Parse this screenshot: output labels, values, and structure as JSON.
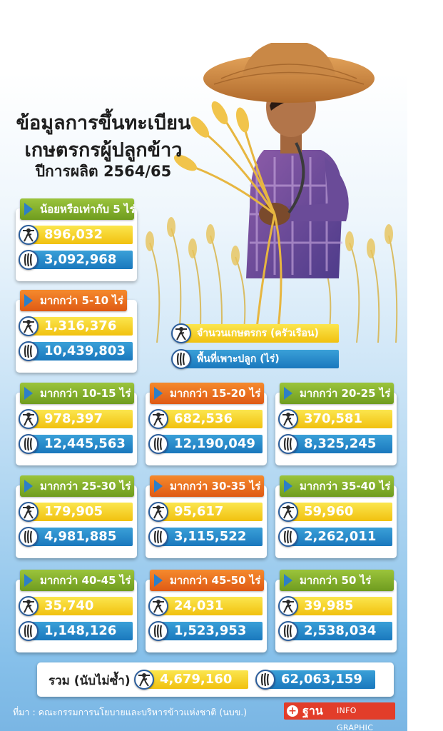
{
  "title": {
    "line1": "ข้อมูลการขึ้นทะเบียน",
    "line2": "เกษตรกรผู้ปลูกข้าว",
    "line3": "ปีการผลิต 2564/65"
  },
  "legend": {
    "households": "จำนวนเกษตรกร (ครัวเรือน)",
    "area": "พื้นที่เพาะปลูก (ไร่)"
  },
  "groups": [
    {
      "label": "น้อยหรือเท่ากับ 5 ไร่",
      "households": "896,032",
      "area": "3,092,968",
      "color": "#8bb832"
    },
    {
      "label": "มากกว่า 5-10 ไร่",
      "households": "1,316,376",
      "area": "10,439,803",
      "color": "#ea7320"
    },
    {
      "label": "มากกว่า 10-15 ไร่",
      "households": "978,397",
      "area": "12,445,563",
      "color": "#8bb832"
    },
    {
      "label": "มากกว่า 15-20 ไร่",
      "households": "682,536",
      "area": "12,190,049",
      "color": "#ea7320"
    },
    {
      "label": "มากกว่า 20-25 ไร่",
      "households": "370,581",
      "area": "8,325,245",
      "color": "#8bb832"
    },
    {
      "label": "มากกว่า 25-30 ไร่",
      "households": "179,905",
      "area": "4,981,885",
      "color": "#8bb832"
    },
    {
      "label": "มากกว่า 30-35 ไร่",
      "households": "95,617",
      "area": "3,115,522",
      "color": "#ea7320"
    },
    {
      "label": "มากกว่า 35-40 ไร่",
      "households": "59,960",
      "area": "2,262,011",
      "color": "#8bb832"
    },
    {
      "label": "มากกว่า 40-45 ไร่",
      "households": "35,740",
      "area": "1,148,126",
      "color": "#8bb832"
    },
    {
      "label": "มากกว่า 45-50 ไร่",
      "households": "24,031",
      "area": "1,523,953",
      "color": "#ea7320"
    },
    {
      "label": "มากกว่า 50 ไร่",
      "households": "39,985",
      "area": "2,538,034",
      "color": "#8bb832"
    }
  ],
  "total": {
    "label": "รวม (นับไม่ซ้ำ)",
    "households": "4,679,160",
    "area": "62,063,159"
  },
  "source": "ที่มา : คณะกรรมการนโยบายและบริหารข้าวแห่งชาติ (นบข.)",
  "logo": {
    "name": "ฐาน",
    "tagline": "INFO GRAPHIC"
  },
  "icons": {
    "households": "farmer-icon",
    "area": "rice-grain-icon"
  },
  "colors": {
    "households_bar": "#f3c514",
    "area_bar": "#1f80c4",
    "badge_green": "#8bb832",
    "badge_orange": "#ea7320"
  }
}
